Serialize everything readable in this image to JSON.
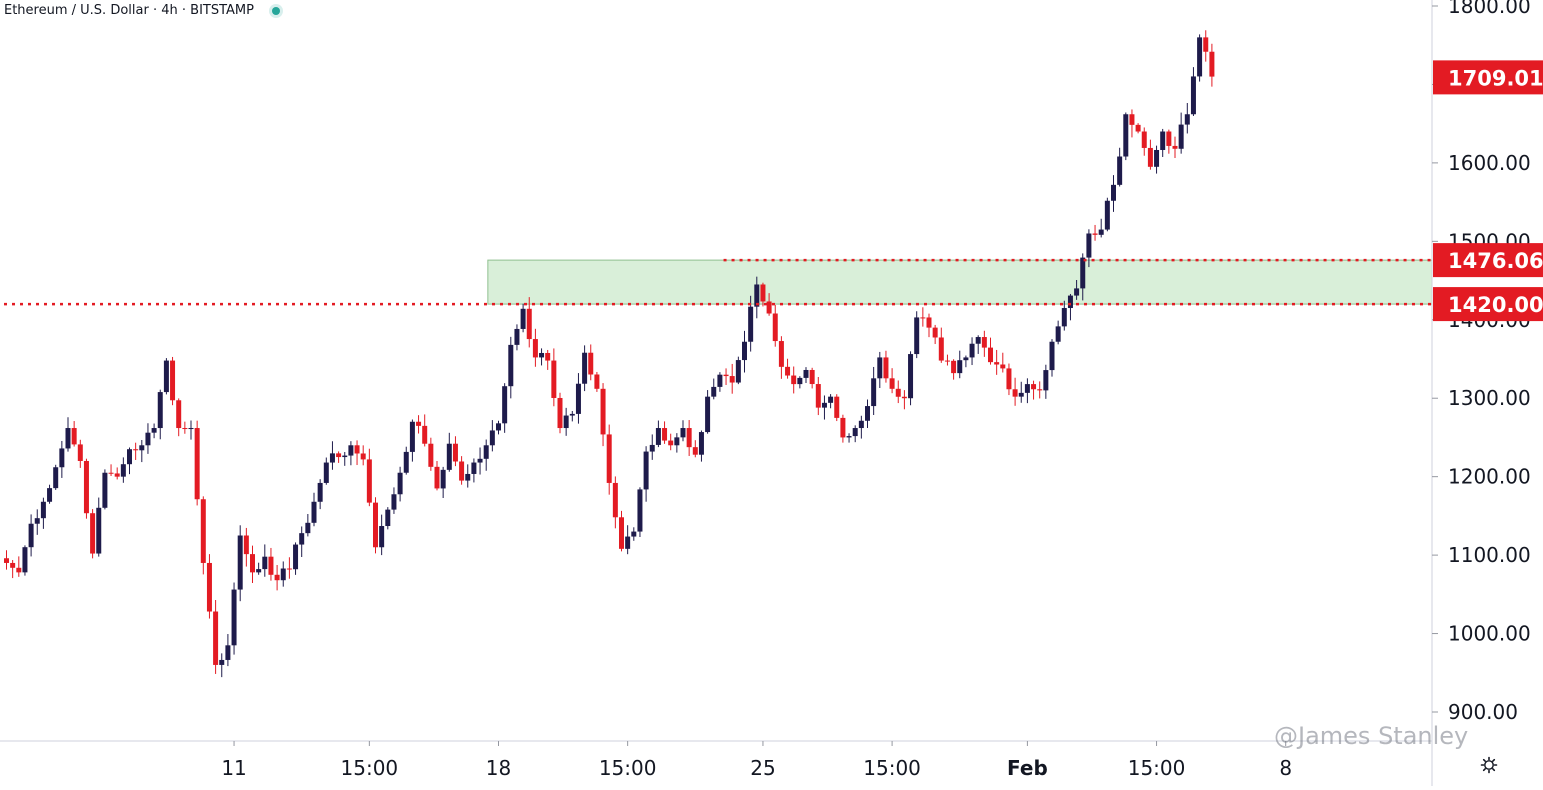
{
  "header": {
    "symbol": "Ethereum / U.S. Dollar",
    "interval": "4h",
    "exchange": "BITSTAMP",
    "sep": "/"
  },
  "watermark": "@James Stanley",
  "colors": {
    "up": "#1e1b4b",
    "down": "#e31b23",
    "zone_fill": "#d9efd9",
    "zone_border": "#8fbf8f",
    "level_line": "#e31b23",
    "label_bg": "#e31b23",
    "axis_text": "#131722"
  },
  "chart_data": {
    "type": "candlestick",
    "title": "Ethereum / U.S. Dollar · 4h · BITSTAMP",
    "ylim": [
      885,
      1805
    ],
    "y_ticks": [
      900,
      1000,
      1100,
      1200,
      1300,
      1400,
      1500,
      1600,
      1700,
      1800
    ],
    "y_tick_labels": [
      "900.00",
      "1000.00",
      "1100.00",
      "1200.00",
      "1300.00",
      "1400.00",
      "1500.00",
      "1600.00",
      "1700.00",
      "1800.00"
    ],
    "x_ticks": [
      {
        "label": "11",
        "bar": 37
      },
      {
        "label": "15:00",
        "bar": 59
      },
      {
        "label": "18",
        "bar": 80
      },
      {
        "label": "15:00",
        "bar": 101
      },
      {
        "label": "25",
        "bar": 123
      },
      {
        "label": "15:00",
        "bar": 144
      },
      {
        "label": "Feb",
        "bar": 166,
        "bold": true
      },
      {
        "label": "15:00",
        "bar": 187
      },
      {
        "label": "8",
        "bar": 208
      }
    ],
    "levels": [
      {
        "price": 1476.06,
        "label": "1476.06",
        "start_bar": 117
      },
      {
        "price": 1420.0,
        "label": "1420.00",
        "start_bar": 0
      }
    ],
    "last_price": {
      "price": 1709.01,
      "label": "1709.01"
    },
    "zone": {
      "low": 1420.0,
      "high": 1476.06,
      "start_bar": 79
    },
    "grid": false,
    "anchors": [
      [
        0,
        1090
      ],
      [
        2,
        1078
      ],
      [
        4,
        1140
      ],
      [
        6,
        1168
      ],
      [
        8,
        1212
      ],
      [
        10,
        1262
      ],
      [
        12,
        1220
      ],
      [
        14,
        1102
      ],
      [
        16,
        1205
      ],
      [
        18,
        1200
      ],
      [
        20,
        1235
      ],
      [
        22,
        1240
      ],
      [
        24,
        1262
      ],
      [
        26,
        1348
      ],
      [
        28,
        1262
      ],
      [
        30,
        1262
      ],
      [
        32,
        1090
      ],
      [
        34,
        960
      ],
      [
        36,
        985
      ],
      [
        38,
        1125
      ],
      [
        40,
        1078
      ],
      [
        42,
        1098
      ],
      [
        44,
        1068
      ],
      [
        46,
        1082
      ],
      [
        48,
        1128
      ],
      [
        50,
        1168
      ],
      [
        52,
        1218
      ],
      [
        54,
        1225
      ],
      [
        56,
        1240
      ],
      [
        58,
        1222
      ],
      [
        60,
        1110
      ],
      [
        62,
        1158
      ],
      [
        64,
        1205
      ],
      [
        66,
        1270
      ],
      [
        68,
        1242
      ],
      [
        70,
        1185
      ],
      [
        72,
        1242
      ],
      [
        74,
        1195
      ],
      [
        76,
        1218
      ],
      [
        78,
        1240
      ],
      [
        80,
        1268
      ],
      [
        82,
        1368
      ],
      [
        84,
        1414
      ],
      [
        86,
        1352
      ],
      [
        88,
        1348
      ],
      [
        90,
        1262
      ],
      [
        92,
        1280
      ],
      [
        94,
        1358
      ],
      [
        96,
        1312
      ],
      [
        98,
        1192
      ],
      [
        100,
        1108
      ],
      [
        102,
        1130
      ],
      [
        104,
        1232
      ],
      [
        106,
        1262
      ],
      [
        108,
        1240
      ],
      [
        110,
        1262
      ],
      [
        112,
        1228
      ],
      [
        114,
        1302
      ],
      [
        116,
        1330
      ],
      [
        118,
        1320
      ],
      [
        120,
        1372
      ],
      [
        122,
        1445
      ],
      [
        124,
        1408
      ],
      [
        126,
        1340
      ],
      [
        128,
        1318
      ],
      [
        130,
        1336
      ],
      [
        132,
        1288
      ],
      [
        134,
        1302
      ],
      [
        136,
        1250
      ],
      [
        138,
        1262
      ],
      [
        140,
        1290
      ],
      [
        142,
        1352
      ],
      [
        144,
        1312
      ],
      [
        146,
        1300
      ],
      [
        148,
        1403
      ],
      [
        150,
        1390
      ],
      [
        152,
        1348
      ],
      [
        154,
        1332
      ],
      [
        156,
        1352
      ],
      [
        158,
        1378
      ],
      [
        160,
        1346
      ],
      [
        162,
        1338
      ],
      [
        164,
        1302
      ],
      [
        166,
        1318
      ],
      [
        168,
        1310
      ],
      [
        170,
        1372
      ],
      [
        172,
        1415
      ],
      [
        174,
        1440
      ],
      [
        176,
        1510
      ],
      [
        178,
        1515
      ],
      [
        180,
        1572
      ],
      [
        182,
        1662
      ],
      [
        184,
        1640
      ],
      [
        186,
        1595
      ],
      [
        188,
        1640
      ],
      [
        190,
        1618
      ],
      [
        192,
        1662
      ],
      [
        194,
        1760
      ],
      [
        196,
        1710
      ]
    ],
    "noise_amplitude": 9,
    "wick_amplitude": 14
  }
}
